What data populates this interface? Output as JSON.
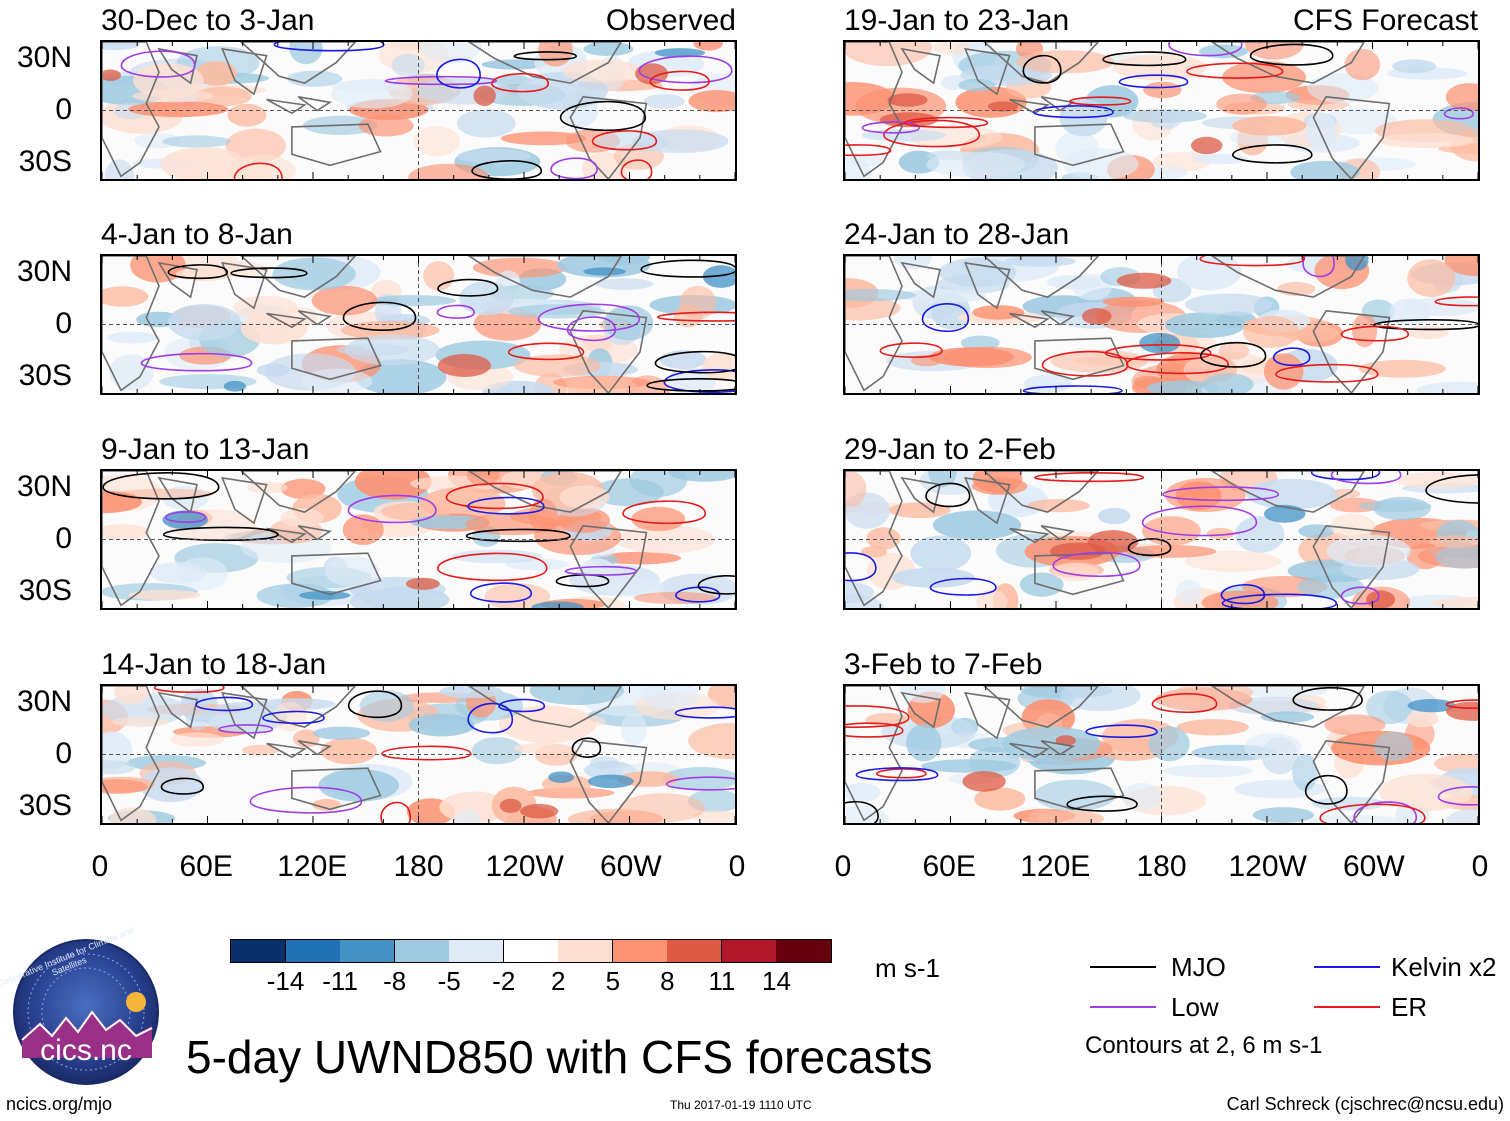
{
  "figure": {
    "title": "5-day UWND850 with CFS forecasts",
    "observed_tag": "Observed",
    "forecast_tag": "CFS Forecast",
    "units": "m s-1",
    "contour_note": "Contours at 2, 6 m s-1",
    "footer_left": "ncics.org/mjo",
    "footer_center": "Thu 2017-01-19 1110 UTC",
    "footer_right": "Carl Schreck (cjschrec@ncsu.edu)",
    "logo_text": "cics.nc",
    "logo_ring_text": "Cooperative Institute for Climate and Satellites"
  },
  "panels_observed": [
    {
      "title": "30-Dec to 3-Jan"
    },
    {
      "title": "4-Jan to 8-Jan"
    },
    {
      "title": "9-Jan to 13-Jan"
    },
    {
      "title": "14-Jan to 18-Jan"
    }
  ],
  "panels_forecast": [
    {
      "title": "19-Jan to 23-Jan"
    },
    {
      "title": "24-Jan to 28-Jan"
    },
    {
      "title": "29-Jan to 2-Feb"
    },
    {
      "title": "3-Feb to 7-Feb"
    }
  ],
  "axes": {
    "lat_labels": [
      "30N",
      "0",
      "30S"
    ],
    "lon_labels": [
      "0",
      "60E",
      "120E",
      "180",
      "120W",
      "60W",
      "0"
    ]
  },
  "colorbar": {
    "colors": [
      "#08306b",
      "#2171b5",
      "#4292c6",
      "#9ecae1",
      "#deebf7",
      "#ffffff",
      "#fee0d2",
      "#fc9272",
      "#de5a44",
      "#b2182b",
      "#67000d"
    ],
    "labels": [
      "-14",
      "-11",
      "-8",
      "-5",
      "-2",
      "2",
      "5",
      "8",
      "11",
      "14"
    ]
  },
  "legend": [
    {
      "label": "MJO",
      "color": "#000000"
    },
    {
      "label": "Kelvin x2",
      "color": "#1a1ae6"
    },
    {
      "label": "Low",
      "color": "#a03ce6"
    },
    {
      "label": "ER",
      "color": "#e61a1a"
    }
  ]
}
